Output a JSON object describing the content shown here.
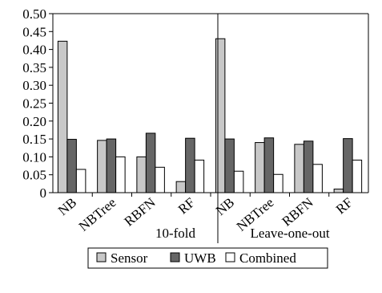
{
  "chart_data": {
    "type": "bar",
    "title": "",
    "xlabel": "",
    "ylabel": "",
    "ylim": [
      0,
      0.5
    ],
    "yticks": [
      "0.50",
      "0.45",
      "0.40",
      "0.35",
      "0.30",
      "0.25",
      "0.20",
      "0.15",
      "0.10",
      "0.05",
      "0"
    ],
    "grid": false,
    "legend_position": "bottom",
    "groups": [
      {
        "label": "10-fold",
        "categories": [
          "NB",
          "NBTree",
          "RBFN",
          "RF"
        ]
      },
      {
        "label": "Leave-one-out",
        "categories": [
          "NB",
          "NBTree",
          "RBFN",
          "RF"
        ]
      }
    ],
    "series": [
      {
        "name": "Sensor",
        "color": "#c8c8c8",
        "values": [
          0.423,
          0.146,
          0.1,
          0.031,
          0.43,
          0.14,
          0.135,
          0.01
        ]
      },
      {
        "name": "UWB",
        "color": "#666666",
        "values": [
          0.149,
          0.15,
          0.166,
          0.152,
          0.15,
          0.153,
          0.144,
          0.151
        ]
      },
      {
        "name": "Combined",
        "color": "#ffffff",
        "values": [
          0.065,
          0.1,
          0.071,
          0.091,
          0.06,
          0.051,
          0.079,
          0.091
        ]
      }
    ]
  }
}
